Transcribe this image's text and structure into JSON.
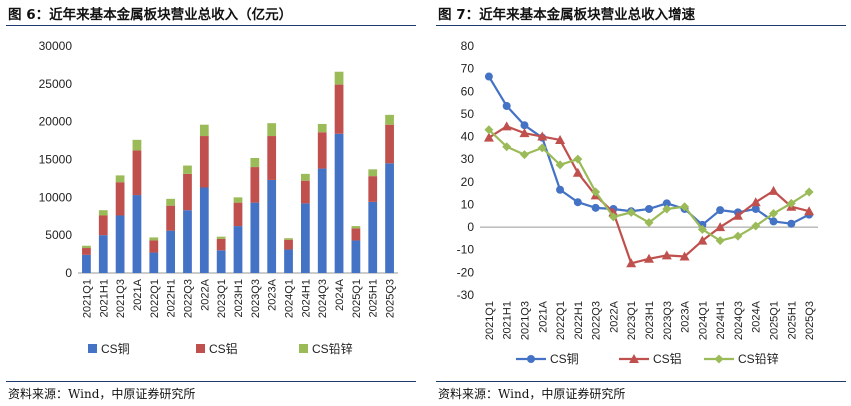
{
  "charts": [
    {
      "figure_title": "图 6：近年来基本金属板块营业总收入（亿元）",
      "source": "资料来源：Wind，中原证券研究所",
      "colors": {
        "copper": "#4472c4",
        "aluminum": "#c0504d",
        "lead_zinc": "#9bbb59"
      }
    },
    {
      "figure_title": "图 7：近年来基本金属板块营业总收入增速",
      "source": "资料来源：Wind，中原证券研究所",
      "colors": {
        "copper": "#4472c4",
        "aluminum": "#c0504d",
        "lead_zinc": "#9bbb59"
      }
    }
  ],
  "chart_data": [
    {
      "type": "bar",
      "stacked": true,
      "title": "近年来基本金属板块营业总收入（亿元）",
      "categories": [
        "2021Q1",
        "2021H1",
        "2021Q3",
        "2021A",
        "2022Q1",
        "2022H1",
        "2022Q3",
        "2022A",
        "2023Q1",
        "2023H1",
        "2023Q3",
        "2023A",
        "2024Q1",
        "2024H1",
        "2024Q3",
        "2024A",
        "2025Q1",
        "2025H1",
        "2025Q3"
      ],
      "series": [
        {
          "name": "CS铜",
          "values": [
            2400,
            5000,
            7600,
            10300,
            2700,
            5600,
            8300,
            11300,
            3000,
            6200,
            9300,
            12300,
            3100,
            9200,
            13800,
            18400,
            4300,
            9400,
            14500
          ]
        },
        {
          "name": "CS铝",
          "values": [
            900,
            2600,
            4400,
            5900,
            1600,
            3300,
            4800,
            6800,
            1500,
            3100,
            4700,
            5800,
            1300,
            3000,
            4800,
            6500,
            1600,
            3400,
            5100
          ]
        },
        {
          "name": "CS铅锌",
          "values": [
            300,
            700,
            900,
            1400,
            400,
            900,
            1100,
            1500,
            300,
            700,
            1200,
            1700,
            200,
            900,
            1100,
            1700,
            300,
            900,
            1300
          ]
        }
      ],
      "ylim": [
        0,
        30000
      ],
      "yticks": [
        0,
        5000,
        10000,
        15000,
        20000,
        25000,
        30000
      ],
      "legend_position": "bottom"
    },
    {
      "type": "line",
      "title": "近年来基本金属板块营业总收入增速",
      "categories": [
        "2021Q1",
        "2021H1",
        "2021Q3",
        "2021A",
        "2022Q1",
        "2022H1",
        "2022Q3",
        "2022A",
        "2023Q1",
        "2023H1",
        "2023Q3",
        "2023A",
        "2024Q1",
        "2024H1",
        "2024Q3",
        "2024A",
        "2025Q1",
        "2025H1",
        "2025Q3"
      ],
      "series": [
        {
          "name": "CS铜",
          "marker": "circle",
          "values": [
            66.5,
            53.5,
            45,
            39.5,
            16.5,
            11,
            8.5,
            8,
            7,
            8,
            10.5,
            8,
            1,
            7.5,
            6.5,
            8,
            2.5,
            1.5,
            5.5
          ]
        },
        {
          "name": "CS铝",
          "marker": "triangle",
          "values": [
            39.5,
            44.5,
            41.5,
            40,
            38.5,
            24,
            14,
            6.5,
            -16,
            -14,
            -12.5,
            -13,
            -6,
            0,
            5,
            11,
            16,
            9,
            7
          ]
        },
        {
          "name": "CS铅锌",
          "marker": "diamond",
          "values": [
            43,
            35.5,
            32,
            35,
            27.5,
            30,
            15.5,
            4.5,
            6.5,
            2,
            8,
            9,
            -1,
            -6,
            -4,
            0.5,
            6,
            10.5,
            15.5
          ]
        }
      ],
      "ylim": [
        -30,
        80
      ],
      "yticks": [
        -30,
        -20,
        -10,
        0,
        10,
        20,
        30,
        40,
        50,
        60,
        70,
        80
      ],
      "legend_position": "bottom"
    }
  ]
}
